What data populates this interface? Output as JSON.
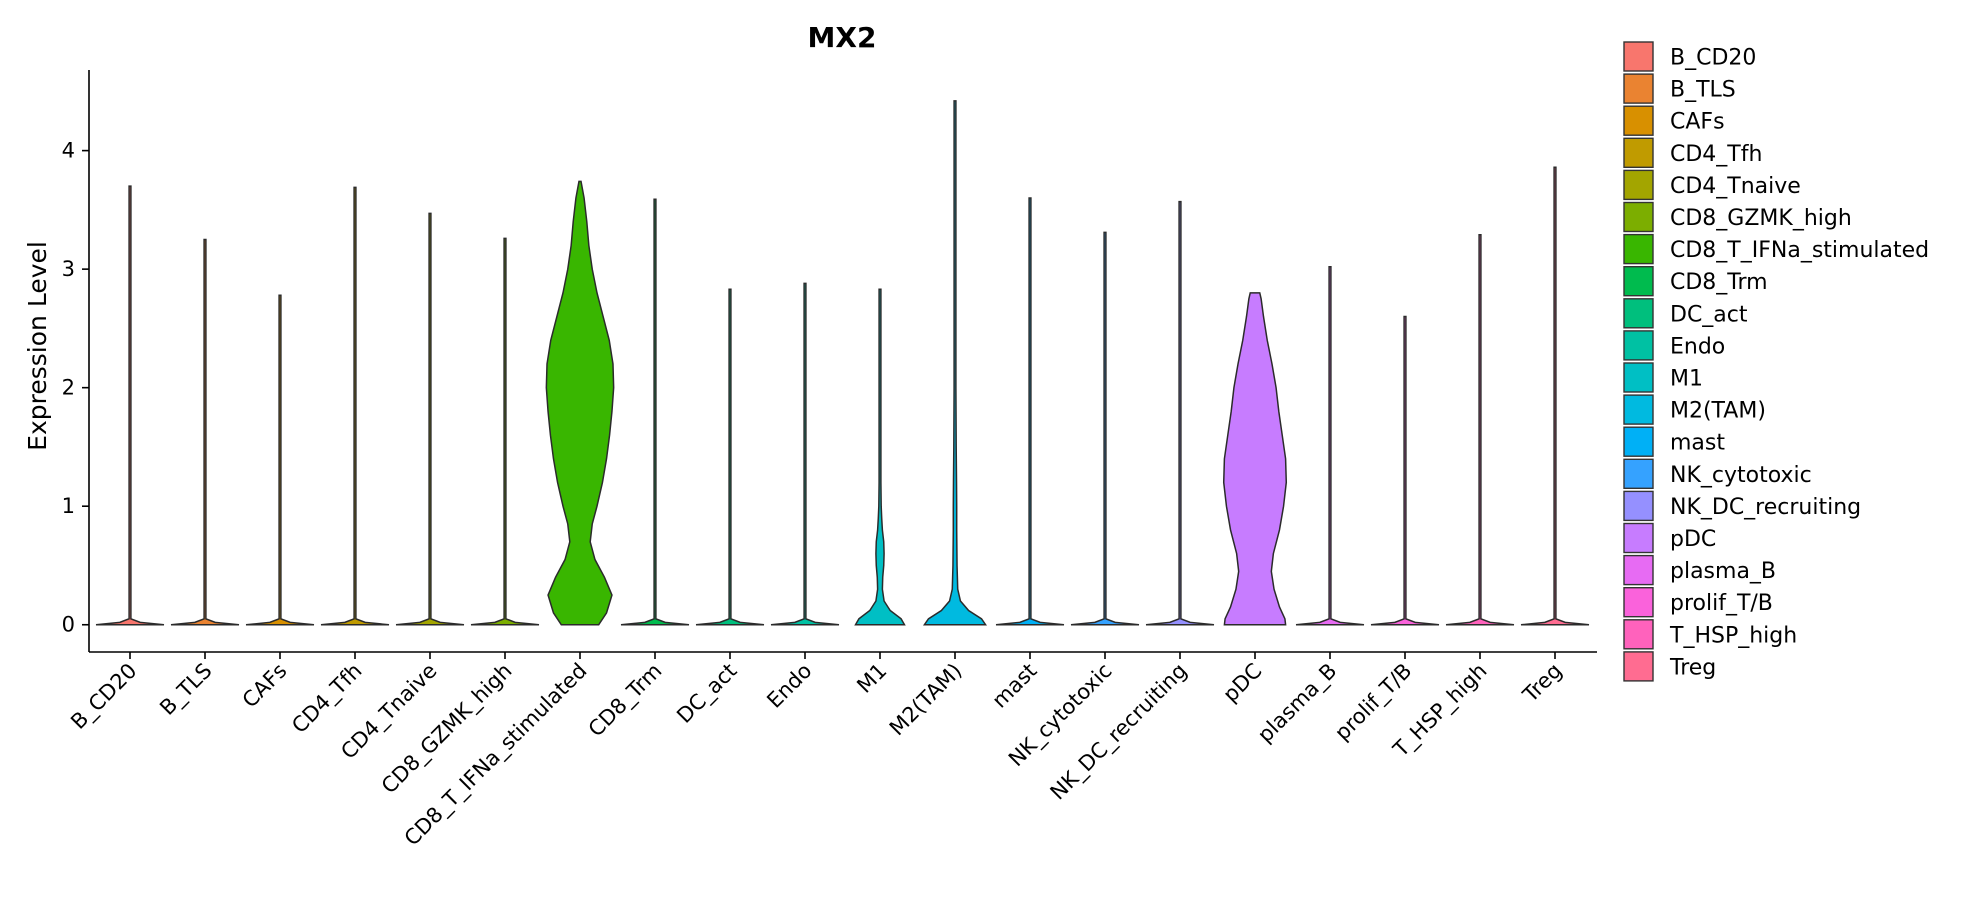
{
  "chart_data": {
    "type": "violin",
    "title": "MX2",
    "ylabel": "Expression Level",
    "xlabel": "",
    "ylim": [
      -0.23,
      4.68
    ],
    "yticks": [
      0,
      1,
      2,
      3,
      4
    ],
    "legend_position": "right",
    "categories": [
      "B_CD20",
      "B_TLS",
      "CAFs",
      "CD4_Tfh",
      "CD4_Tnaive",
      "CD8_GZMK_high",
      "CD8_T_IFNa_stimulated",
      "CD8_Trm",
      "DC_act",
      "Endo",
      "M1",
      "M2(TAM)",
      "mast",
      "NK_cytotoxic",
      "NK_DC_recruiting",
      "pDC",
      "plasma_B",
      "prolif_T/B",
      "T_HSP_high",
      "Treg"
    ],
    "colors": [
      "#F8766D",
      "#EA8331",
      "#D89000",
      "#C09B00",
      "#A3A500",
      "#7CAE00",
      "#39B600",
      "#00BB4E",
      "#00BF7D",
      "#00C1A3",
      "#00BFC4",
      "#00BAE0",
      "#00B0F6",
      "#35A2FF",
      "#9590FF",
      "#C77CFF",
      "#E76BF3",
      "#FA62DB",
      "#FF62BC",
      "#FF6C91"
    ],
    "max_values": [
      3.7,
      3.25,
      2.78,
      3.69,
      3.47,
      3.26,
      3.74,
      3.59,
      2.83,
      2.88,
      2.83,
      4.42,
      3.6,
      3.31,
      3.57,
      2.8,
      3.02,
      2.6,
      3.29,
      3.86
    ],
    "density_profiles": {
      "CD8_T_IFNa_stimulated": [
        [
          0,
          0.55
        ],
        [
          0.1,
          0.78
        ],
        [
          0.25,
          0.94
        ],
        [
          0.4,
          0.72
        ],
        [
          0.55,
          0.44
        ],
        [
          0.7,
          0.3
        ],
        [
          0.85,
          0.36
        ],
        [
          1.0,
          0.5
        ],
        [
          1.2,
          0.66
        ],
        [
          1.4,
          0.78
        ],
        [
          1.6,
          0.87
        ],
        [
          1.8,
          0.94
        ],
        [
          2.0,
          0.99
        ],
        [
          2.2,
          0.97
        ],
        [
          2.4,
          0.86
        ],
        [
          2.6,
          0.68
        ],
        [
          2.8,
          0.5
        ],
        [
          3.0,
          0.36
        ],
        [
          3.2,
          0.26
        ],
        [
          3.4,
          0.2
        ],
        [
          3.6,
          0.12
        ],
        [
          3.74,
          0.03
        ]
      ],
      "M1": [
        [
          0,
          0.72
        ],
        [
          0.05,
          0.62
        ],
        [
          0.12,
          0.3
        ],
        [
          0.2,
          0.12
        ],
        [
          0.3,
          0.07
        ],
        [
          0.4,
          0.08
        ],
        [
          0.5,
          0.11
        ],
        [
          0.6,
          0.12
        ],
        [
          0.7,
          0.11
        ],
        [
          0.8,
          0.07
        ],
        [
          0.9,
          0.05
        ],
        [
          1.0,
          0.035
        ],
        [
          1.2,
          0.02
        ],
        [
          1.6,
          0.012
        ],
        [
          2.2,
          0.008
        ],
        [
          2.83,
          0.004
        ]
      ],
      "M2(TAM)": [
        [
          0,
          0.9
        ],
        [
          0.05,
          0.78
        ],
        [
          0.12,
          0.4
        ],
        [
          0.2,
          0.16
        ],
        [
          0.3,
          0.08
        ],
        [
          0.5,
          0.06
        ],
        [
          0.8,
          0.05
        ],
        [
          1.0,
          0.05
        ],
        [
          1.2,
          0.045
        ],
        [
          1.5,
          0.035
        ],
        [
          2.0,
          0.022
        ],
        [
          2.5,
          0.015
        ],
        [
          3.0,
          0.01
        ],
        [
          3.5,
          0.007
        ],
        [
          4.0,
          0.004
        ],
        [
          4.42,
          0.002
        ]
      ],
      "pDC": [
        [
          0,
          0.9
        ],
        [
          0.05,
          0.88
        ],
        [
          0.15,
          0.72
        ],
        [
          0.3,
          0.56
        ],
        [
          0.45,
          0.48
        ],
        [
          0.6,
          0.54
        ],
        [
          0.8,
          0.72
        ],
        [
          1.0,
          0.84
        ],
        [
          1.2,
          0.92
        ],
        [
          1.4,
          0.9
        ],
        [
          1.6,
          0.8
        ],
        [
          1.8,
          0.7
        ],
        [
          2.0,
          0.62
        ],
        [
          2.2,
          0.5
        ],
        [
          2.4,
          0.36
        ],
        [
          2.6,
          0.25
        ],
        [
          2.75,
          0.18
        ],
        [
          2.8,
          0.14
        ]
      ]
    },
    "legend": [
      "B_CD20",
      "B_TLS",
      "CAFs",
      "CD4_Tfh",
      "CD4_Tnaive",
      "CD8_GZMK_high",
      "CD8_T_IFNa_stimulated",
      "CD8_Trm",
      "DC_act",
      "Endo",
      "M1",
      "M2(TAM)",
      "mast",
      "NK_cytotoxic",
      "NK_DC_recruiting",
      "pDC",
      "plasma_B",
      "prolif_T/B",
      "T_HSP_high",
      "Treg"
    ]
  }
}
